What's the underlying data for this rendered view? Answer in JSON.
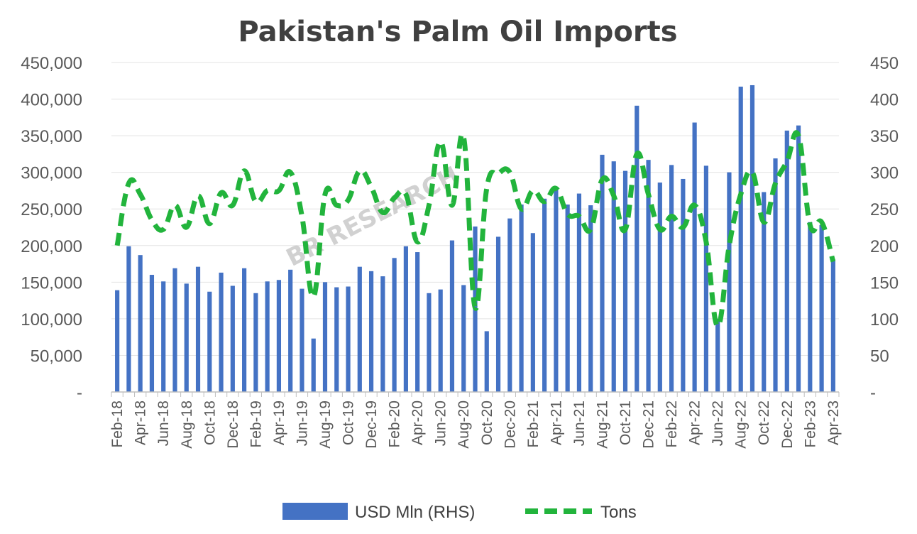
{
  "chart_data": {
    "type": "bar",
    "title": "Pakistan's Palm Oil Imports",
    "watermark": "BR RESEARCH",
    "categories": [
      "Feb-18",
      "Mar-18",
      "Apr-18",
      "May-18",
      "Jun-18",
      "Jul-18",
      "Aug-18",
      "Sep-18",
      "Oct-18",
      "Nov-18",
      "Dec-18",
      "Jan-19",
      "Feb-19",
      "Mar-19",
      "Apr-19",
      "May-19",
      "Jun-19",
      "Jul-19",
      "Aug-19",
      "Sep-19",
      "Oct-19",
      "Nov-19",
      "Dec-19",
      "Jan-20",
      "Feb-20",
      "Mar-20",
      "Apr-20",
      "May-20",
      "Jun-20",
      "Jul-20",
      "Aug-20",
      "Sep-20",
      "Oct-20",
      "Nov-20",
      "Dec-20",
      "Jan-21",
      "Feb-21",
      "Mar-21",
      "Apr-21",
      "May-21",
      "Jun-21",
      "Jul-21",
      "Aug-21",
      "Sep-21",
      "Oct-21",
      "Nov-21",
      "Dec-21",
      "Jan-22",
      "Feb-22",
      "Mar-22",
      "Apr-22",
      "May-22",
      "Jun-22",
      "Jul-22",
      "Aug-22",
      "Sep-22",
      "Oct-22",
      "Nov-22",
      "Dec-22",
      "Jan-23",
      "Feb-23",
      "Mar-23",
      "Apr-23"
    ],
    "x_tick_labels": [
      "Feb-18",
      "Apr-18",
      "Jun-18",
      "Aug-18",
      "Oct-18",
      "Dec-18",
      "Feb-19",
      "Apr-19",
      "Jun-19",
      "Aug-19",
      "Oct-19",
      "Dec-19",
      "Feb-20",
      "Apr-20",
      "Jun-20",
      "Aug-20",
      "Oct-20",
      "Dec-20",
      "Feb-21",
      "Apr-21",
      "Jun-21",
      "Aug-21",
      "Oct-21",
      "Dec-21",
      "Feb-22",
      "Apr-22",
      "Jun-22",
      "Aug-22",
      "Oct-22",
      "Dec-22",
      "Feb-23",
      "Apr-23"
    ],
    "series": [
      {
        "name": "USD Mln (RHS)",
        "type": "bar",
        "axis": "right",
        "color": "#4472C4",
        "values": [
          139,
          199,
          187,
          160,
          151,
          169,
          148,
          171,
          137,
          163,
          145,
          169,
          135,
          151,
          153,
          167,
          141,
          73,
          150,
          143,
          144,
          171,
          165,
          158,
          183,
          199,
          191,
          135,
          140,
          207,
          146,
          226,
          83,
          212,
          237,
          256,
          217,
          264,
          280,
          256,
          271,
          255,
          324,
          315,
          302,
          391,
          317,
          286,
          310,
          291,
          368,
          309,
          100,
          300,
          417,
          419,
          273,
          319,
          357,
          364,
          232,
          228,
          181
        ]
      },
      {
        "name": "Tons",
        "type": "line",
        "axis": "left",
        "color": "#22B43C",
        "values": [
          200000,
          285000,
          270000,
          235000,
          222000,
          255000,
          225000,
          268000,
          230000,
          272000,
          255000,
          302000,
          260000,
          275000,
          275000,
          300000,
          240000,
          130000,
          270000,
          255000,
          262000,
          302000,
          280000,
          245000,
          265000,
          270000,
          205000,
          255000,
          342000,
          255000,
          348000,
          115000,
          278000,
          298000,
          300000,
          250000,
          275000,
          260000,
          278000,
          243000,
          240000,
          222000,
          290000,
          268000,
          222000,
          325000,
          270000,
          222000,
          240000,
          225000,
          255000,
          205000,
          90000,
          200000,
          270000,
          300000,
          232000,
          285000,
          315000,
          350000,
          228000,
          232000,
          178000
        ]
      }
    ],
    "y_left": {
      "ticks": [
        "-",
        "50,000",
        "100,000",
        "150,000",
        "200,000",
        "250,000",
        "300,000",
        "350,000",
        "400,000",
        "450,000"
      ],
      "min": 0,
      "max": 450000
    },
    "y_right": {
      "ticks": [
        "-",
        "50",
        "100",
        "150",
        "200",
        "250",
        "300",
        "350",
        "400",
        "450"
      ],
      "min": 0,
      "max": 450
    },
    "grid": true,
    "legend_position": "bottom"
  }
}
